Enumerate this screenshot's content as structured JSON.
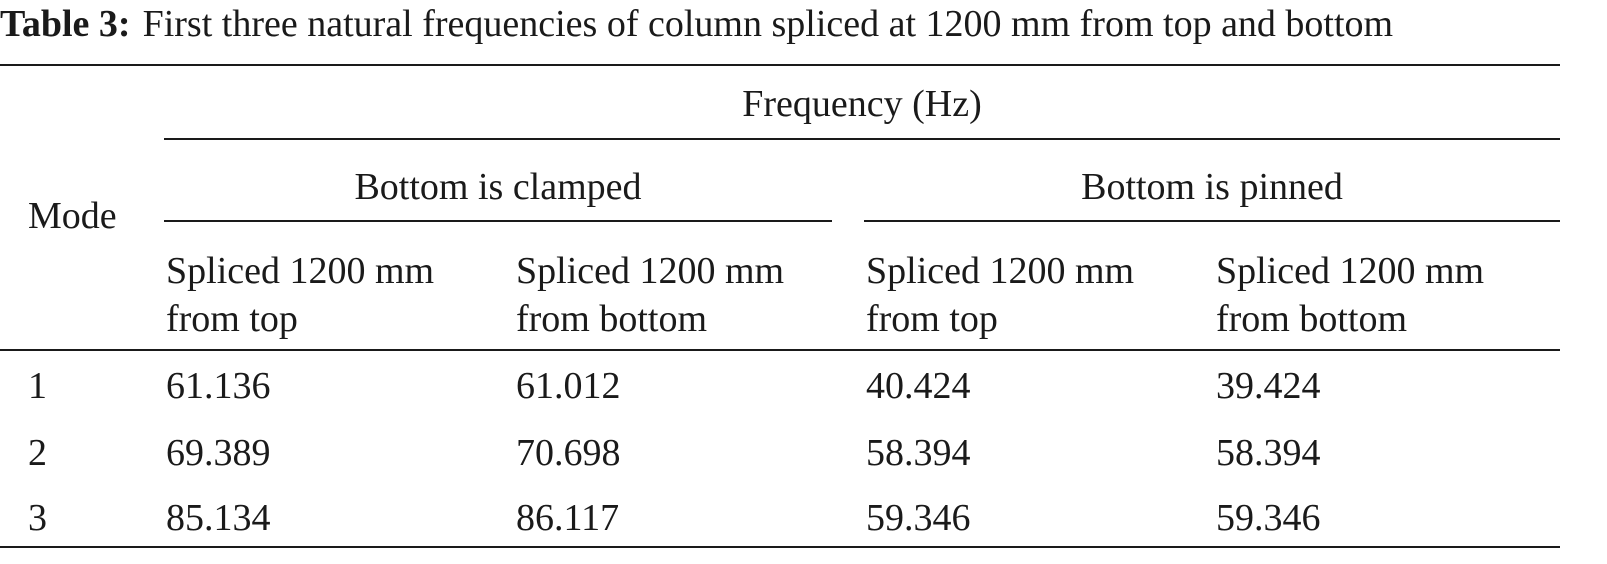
{
  "caption": {
    "label": "Table 3:",
    "text": "First three natural frequencies of column spliced at 1200 mm from top and bottom"
  },
  "table": {
    "row_header": "Mode",
    "group_header": "Frequency (Hz)",
    "subgroups": [
      "Bottom is clamped",
      "Bottom is pinned"
    ],
    "columns": [
      {
        "line1": "Spliced 1200 mm",
        "line2": "from top"
      },
      {
        "line1": "Spliced 1200 mm",
        "line2": "from bottom"
      },
      {
        "line1": "Spliced 1200 mm",
        "line2": "from top"
      },
      {
        "line1": "Spliced 1200 mm",
        "line2": "from bottom"
      }
    ],
    "rows": [
      {
        "mode": "1",
        "values": [
          "61.136",
          "61.012",
          "40.424",
          "39.424"
        ]
      },
      {
        "mode": "2",
        "values": [
          "69.389",
          "70.698",
          "58.394",
          "58.394"
        ]
      },
      {
        "mode": "3",
        "values": [
          "85.134",
          "86.117",
          "59.346",
          "59.346"
        ]
      }
    ]
  }
}
